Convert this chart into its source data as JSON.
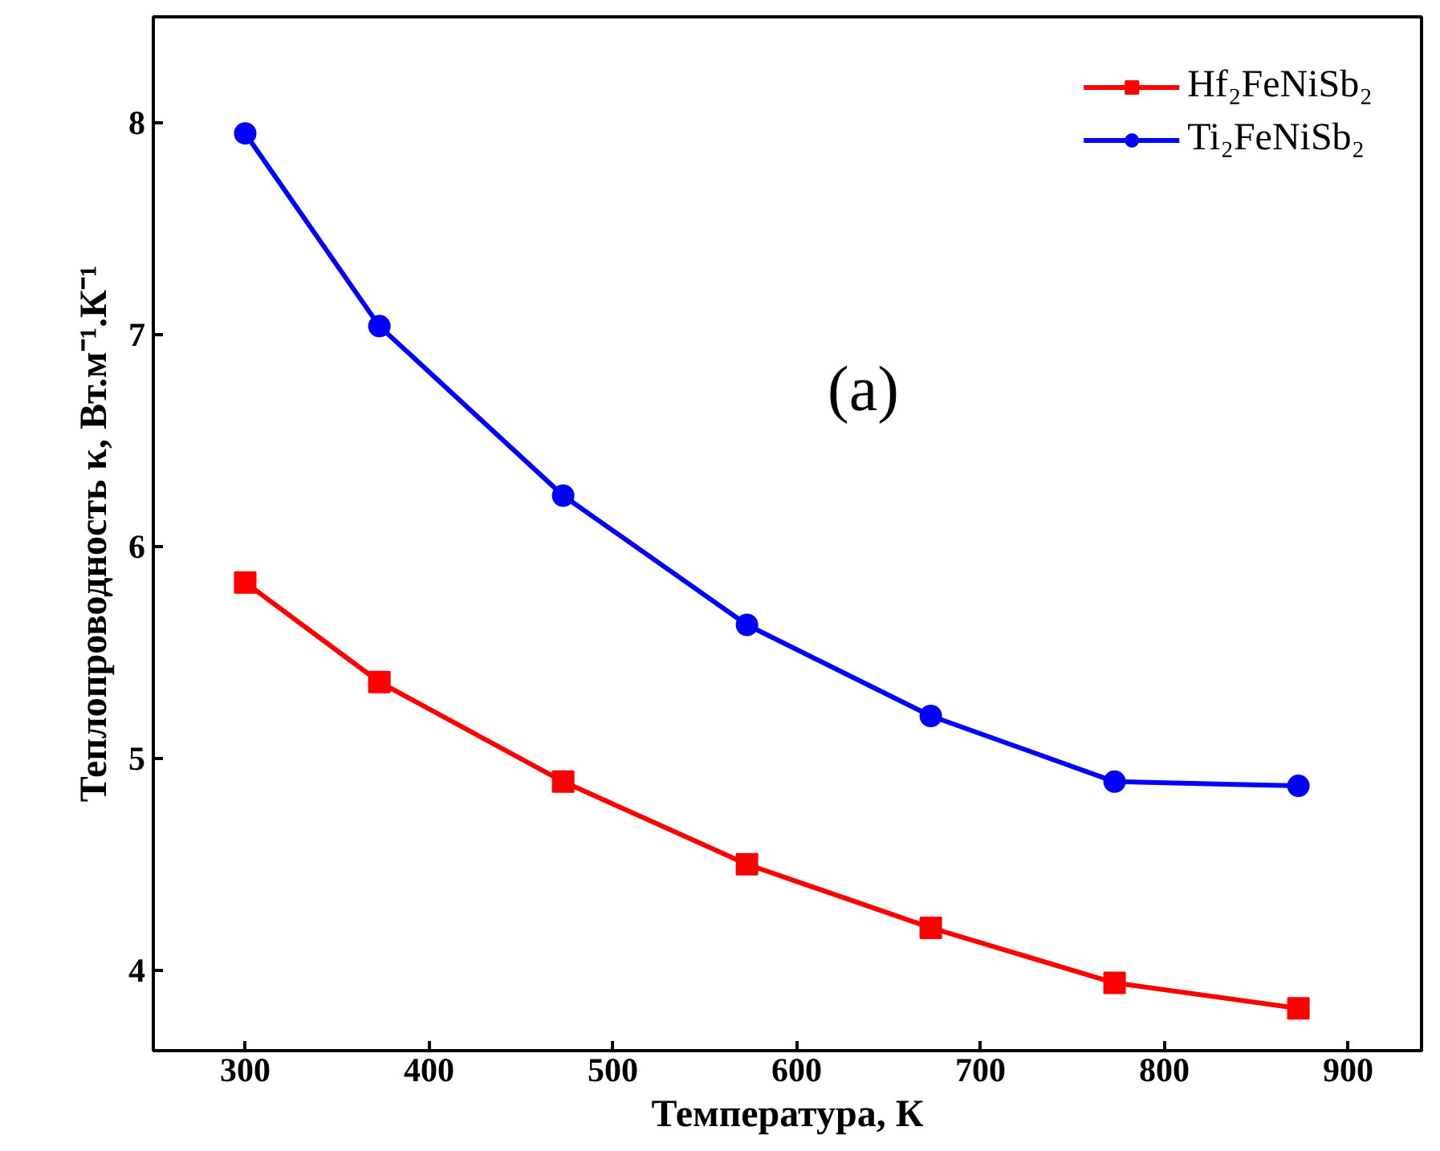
{
  "chart_data": {
    "type": "line",
    "xlabel": "Температура, К",
    "ylabel": "Теплопроводность κ, Вт.м⁻¹.К⁻¹",
    "annotations": [
      "(a)"
    ],
    "x": [
      300,
      373,
      473,
      573,
      673,
      773,
      873
    ],
    "series": [
      {
        "name": "Hf₂FeNiSb₂",
        "color": "#ff0000",
        "marker": "square",
        "values": [
          5.83,
          5.36,
          4.89,
          4.5,
          4.2,
          3.94,
          3.82
        ]
      },
      {
        "name": "Ti₂FeNiSb₂",
        "color": "#0000ff",
        "marker": "circle",
        "values": [
          7.95,
          7.04,
          6.24,
          5.63,
          5.2,
          4.89,
          4.87
        ]
      }
    ],
    "xlim": [
      250,
      940
    ],
    "ylim": [
      3.62,
      8.5
    ],
    "xticks": [
      300,
      400,
      500,
      600,
      700,
      800,
      900
    ],
    "yticks": [
      4,
      5,
      6,
      7,
      8
    ],
    "grid": false,
    "legend": "top right",
    "line_style": "solid"
  }
}
